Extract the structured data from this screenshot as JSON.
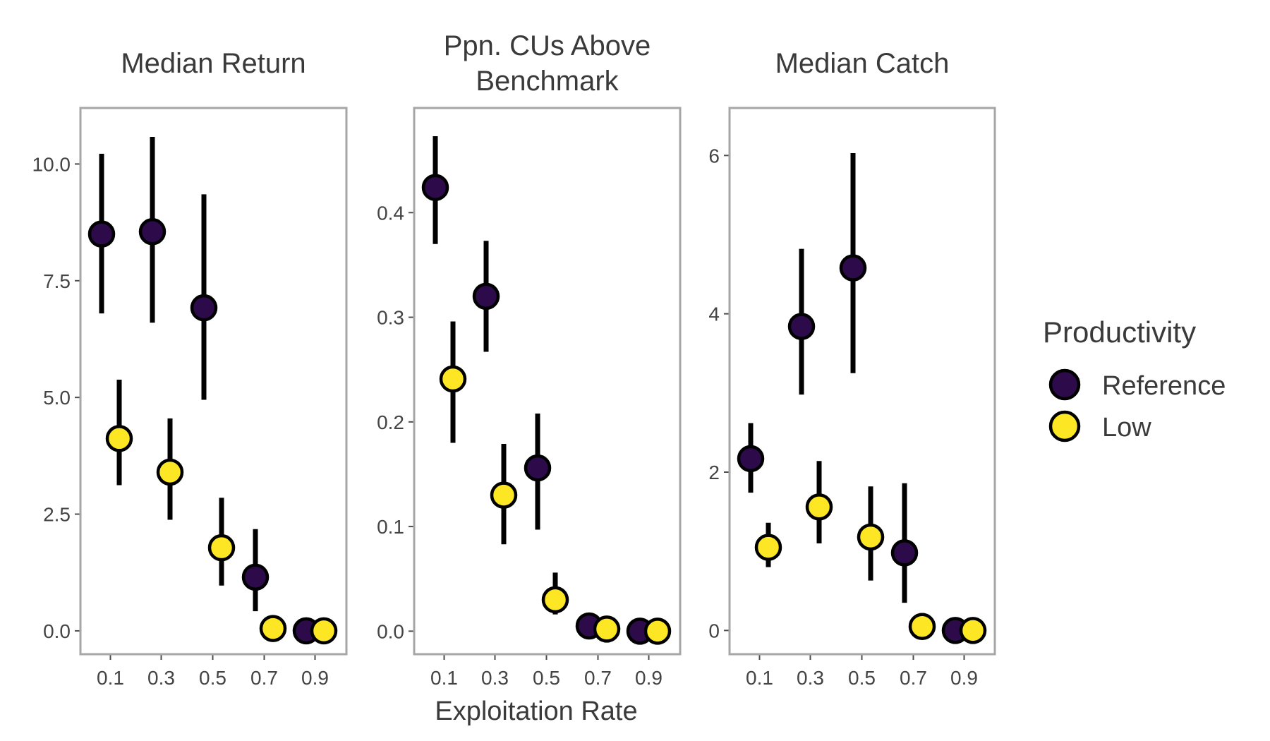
{
  "colors": {
    "Reference": "#2d0a4a",
    "Low": "#fde725",
    "outline": "#000000",
    "frame": "#a6a6a6"
  },
  "x_axis_title": "Exploitation Rate",
  "legend": {
    "title": "Productivity",
    "entries": [
      "Reference",
      "Low"
    ]
  },
  "chart_data": [
    {
      "type": "scatter",
      "title_lines": [
        "Median Return"
      ],
      "x_ticks": [
        "0.1",
        "0.3",
        "0.5",
        "0.7",
        "0.9"
      ],
      "y_ticks": [
        "0.0",
        "2.5",
        "5.0",
        "7.5",
        "10.0"
      ],
      "ylim": [
        -0.5,
        11.2
      ],
      "series": [
        {
          "name": "Reference",
          "x": [
            0.1,
            0.3,
            0.5,
            0.7,
            0.9
          ],
          "y": [
            8.5,
            8.55,
            6.92,
            1.15,
            0.0
          ],
          "lo": [
            6.8,
            6.6,
            4.95,
            0.42,
            0.0
          ],
          "hi": [
            10.22,
            10.58,
            9.35,
            2.18,
            0.0
          ]
        },
        {
          "name": "Low",
          "x": [
            0.1,
            0.3,
            0.5,
            0.7,
            0.9
          ],
          "y": [
            4.12,
            3.4,
            1.78,
            0.05,
            0.0
          ],
          "lo": [
            3.12,
            2.38,
            0.97,
            0.0,
            0.0
          ],
          "hi": [
            5.38,
            4.55,
            2.85,
            0.1,
            0.0
          ]
        }
      ]
    },
    {
      "type": "scatter",
      "title_lines": [
        "Ppn. CUs Above",
        "Benchmark"
      ],
      "x_ticks": [
        "0.1",
        "0.3",
        "0.5",
        "0.7",
        "0.9"
      ],
      "y_ticks": [
        "0.0",
        "0.1",
        "0.2",
        "0.3",
        "0.4"
      ],
      "ylim": [
        -0.022,
        0.5
      ],
      "series": [
        {
          "name": "Reference",
          "x": [
            0.1,
            0.3,
            0.5,
            0.7,
            0.9
          ],
          "y": [
            0.424,
            0.32,
            0.156,
            0.005,
            0.0
          ],
          "lo": [
            0.37,
            0.267,
            0.097,
            0.0,
            0.0
          ],
          "hi": [
            0.473,
            0.373,
            0.208,
            0.01,
            0.0
          ]
        },
        {
          "name": "Low",
          "x": [
            0.1,
            0.3,
            0.5,
            0.7,
            0.9
          ],
          "y": [
            0.241,
            0.13,
            0.03,
            0.002,
            0.0
          ],
          "lo": [
            0.18,
            0.083,
            0.016,
            0.0,
            0.0
          ],
          "hi": [
            0.296,
            0.179,
            0.056,
            0.004,
            0.0
          ]
        }
      ]
    },
    {
      "type": "scatter",
      "title_lines": [
        "Median Catch"
      ],
      "x_ticks": [
        "0.1",
        "0.3",
        "0.5",
        "0.7",
        "0.9"
      ],
      "y_ticks": [
        "0",
        "2",
        "4",
        "6"
      ],
      "ylim": [
        -0.3,
        6.6
      ],
      "series": [
        {
          "name": "Reference",
          "x": [
            0.1,
            0.3,
            0.5,
            0.7,
            0.9
          ],
          "y": [
            2.17,
            3.84,
            4.58,
            0.98,
            0.0
          ],
          "lo": [
            1.74,
            2.98,
            3.25,
            0.35,
            0.0
          ],
          "hi": [
            2.62,
            4.82,
            6.03,
            1.86,
            0.0
          ]
        },
        {
          "name": "Low",
          "x": [
            0.1,
            0.3,
            0.5,
            0.7,
            0.9
          ],
          "y": [
            1.05,
            1.56,
            1.18,
            0.05,
            0.0
          ],
          "lo": [
            0.8,
            1.1,
            0.63,
            0.0,
            0.0
          ],
          "hi": [
            1.36,
            2.14,
            1.82,
            0.22,
            0.0
          ]
        }
      ]
    }
  ]
}
